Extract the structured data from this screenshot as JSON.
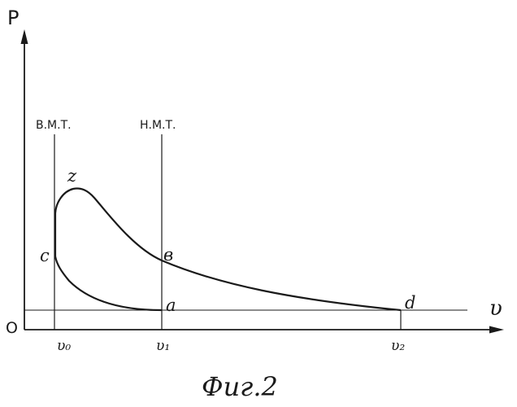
{
  "axes": {
    "y_label": "P",
    "x_label": "υ",
    "origin_label": "O"
  },
  "markers": {
    "tdc_label": "В.М.Т.",
    "bdc_label": "Н.М.Т."
  },
  "points": {
    "z": "z",
    "c": "c",
    "b": "в",
    "a": "a",
    "d": "d"
  },
  "x_ticks": {
    "v0": "υ₀",
    "v1": "υ₁",
    "v2": "υ₂"
  },
  "caption": "Фиг.2",
  "colors": {
    "ink": "#1a1a1a",
    "background": "#ffffff"
  }
}
